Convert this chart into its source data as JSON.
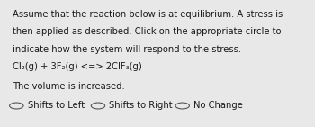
{
  "bg_color": "#e8e8e8",
  "text_color": "#1a1a1a",
  "line1": "Assume that the reaction below is at equilibrium. A stress is",
  "line2": "then applied as described. Click on the appropriate circle to",
  "line3": "indicate how the system will respond to the stress.",
  "line4": "Cl₂(g) + 3F₂(g) <=> 2ClF₃(g)",
  "line5": "The volume is increased.",
  "option1": "Shifts to Left",
  "option2": "Shifts to Right",
  "option3": "No Change",
  "font_size_main": 7.2,
  "font_size_eq": 7.2,
  "font_size_options": 7.2
}
